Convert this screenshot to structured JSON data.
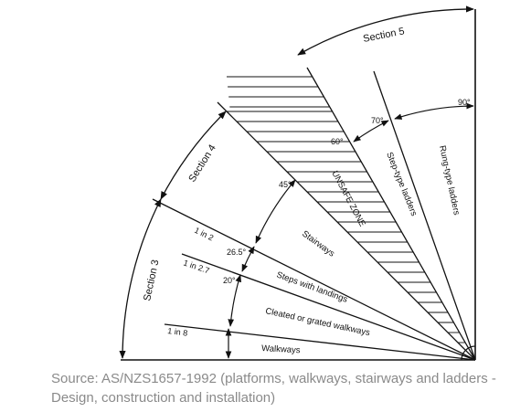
{
  "diagram": {
    "sections": [
      "Section 3",
      "Section 4",
      "Section 5"
    ],
    "angles": [
      "20°",
      "26.5°",
      "45°",
      "60°",
      "70°",
      "90°"
    ],
    "gradients": [
      "1 in 8",
      "1 in 2.7",
      "1 in 2"
    ],
    "zones": {
      "walkways": "Walkways",
      "cleated": "Cleated or grated walkways",
      "steps": "Steps with landings",
      "stairways": "Stairways",
      "unsafe": "UNSAFE ZONE",
      "step_ladders": "Step-type ladders",
      "rung_ladders": "Rung-type ladders"
    }
  },
  "caption": "Source: AS/NZS1657-1992 (platforms, walkways, stairways and ladders - Design, construction and installation)"
}
